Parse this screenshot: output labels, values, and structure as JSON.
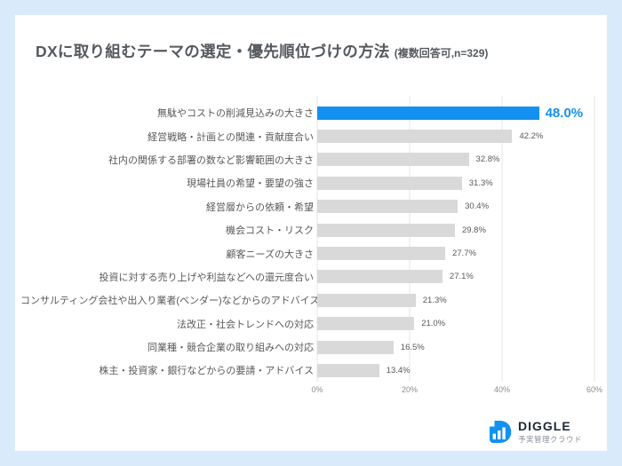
{
  "page": {
    "background_color": "#d9ebfb",
    "card_color": "#ffffff"
  },
  "header": {
    "title": "DXに取り組むテーマの選定・優先順位づけの方法",
    "subtitle": "(複数回答可,n=329)"
  },
  "chart_data": {
    "type": "bar",
    "orientation": "horizontal",
    "categories": [
      "無駄やコストの削減見込みの大きさ",
      "経営戦略・計画との関連・貢献度合い",
      "社内の関係する部署の数など影響範囲の大きさ",
      "現場社員の希望・要望の強さ",
      "経営層からの依頼・希望",
      "機会コスト・リスク",
      "顧客ニーズの大きさ",
      "投資に対する売り上げや利益などへの還元度合い",
      "コンサルティング会社や出入り業者(ベンダー)などからのアドバイス",
      "法改正・社会トレンドへの対応",
      "同業種・競合企業の取り組みへの対応",
      "株主・投資家・銀行などからの要請・アドバイス"
    ],
    "values": [
      48.0,
      42.2,
      32.8,
      31.3,
      30.4,
      29.8,
      27.7,
      27.1,
      21.3,
      21.0,
      16.5,
      13.4
    ],
    "value_labels": [
      "48.0%",
      "42.2%",
      "32.8%",
      "31.3%",
      "30.4%",
      "29.8%",
      "27.7%",
      "27.1%",
      "21.3%",
      "21.0%",
      "16.5%",
      "13.4%"
    ],
    "highlight_index": 0,
    "xlim": [
      0,
      60
    ],
    "x_ticks": [
      {
        "value": 0,
        "label": "0%"
      },
      {
        "value": 20,
        "label": "20%"
      },
      {
        "value": 40,
        "label": "40%"
      },
      {
        "value": 60,
        "label": "60%"
      }
    ],
    "grid": true,
    "legend": "none",
    "colors": {
      "highlight_bar": "#1291f0",
      "bar": "#d9d9d9",
      "grid_line": "#e4e4e4",
      "value_text": "#595959",
      "highlight_value_text": "#1291f0"
    }
  },
  "footer_logo": {
    "brand": "DIGGLE",
    "tagline": "予実管理クラウド",
    "icon": "diggle-d-bar-chart-icon",
    "icon_color": "#1291f0",
    "brand_color": "#1c2a38"
  }
}
